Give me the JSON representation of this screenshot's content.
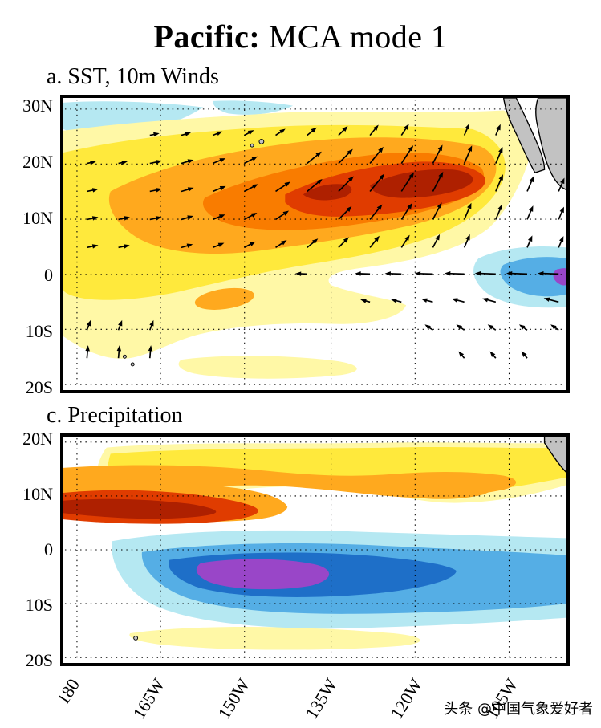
{
  "title": {
    "bold": "Pacific:",
    "rest": " MCA mode 1"
  },
  "panels": {
    "a": {
      "label": "a.  SST, 10m Winds",
      "y_ticks": [
        "30N",
        "20N",
        "10N",
        "0",
        "10S",
        "20S"
      ]
    },
    "c": {
      "label": "c.  Precipitation",
      "y_ticks": [
        "20N",
        "10N",
        "0",
        "10S",
        "20S"
      ]
    }
  },
  "x_axis": {
    "ticks": [
      "180",
      "165W",
      "150W",
      "135W",
      "120W",
      "105W"
    ]
  },
  "watermark": "头条 @中国气象爱好者",
  "palette": {
    "warm": [
      "#FFF8A6",
      "#FFE93C",
      "#FFA91E",
      "#F97C00",
      "#E03C00",
      "#AE2000"
    ],
    "cool": [
      "#B5E8F2",
      "#55AEE5",
      "#1E6FC8",
      "#9946C8"
    ],
    "land": "#C2C2C2"
  },
  "chart_data": [
    {
      "type": "heatmap",
      "panel": "a",
      "title": "SST, 10m Winds",
      "x_ticks": [
        "180",
        "165W",
        "150W",
        "135W",
        "120W",
        "105W"
      ],
      "y_ticks": [
        "30N",
        "20N",
        "10N",
        "0",
        "10S",
        "20S"
      ],
      "x_range": "180 to about 95W",
      "y_range": "about 22S to 32N",
      "grid": "dotted lat/lon graticule every 10 deg lat / 15 deg lon",
      "fields": {
        "sst_anomaly": {
          "positive_region": "broad warm anomaly (yellow to orange) spanning roughly 5S-30N from 180 eastward to the Mexican coast",
          "maximum": "elongated dark-red warm core near 13N-25N between about 150W and 115W",
          "secondary_positive": "weak warm tongue near 5S-10S west of 135W",
          "negative_region": "cool anomaly (cyan/blue) on the equator east of about 115W with a small purple extreme at the eastern boundary",
          "other_negative": "thin cool strip along 30N near the date line"
        },
        "winds_10m": "anomalous west-southwesterly vectors converging toward the warm core north of the equator (strongest over the dark-red maximum, turning northward near the Mexican coast); easterly anomalies along the equator east of about 150W; weak scattered vectors south of 5S including small northward arrows near 15S west of 165W"
      },
      "land": [
        "Baja California and mainland Mexico (gray, upper right)",
        "Hawaiian islands (small gray specks near 20N 155W)",
        "small island specks near 10-15S in the far west"
      ]
    },
    {
      "type": "heatmap",
      "panel": "c",
      "title": "Precipitation",
      "x_ticks": [
        "180",
        "165W",
        "150W",
        "135W",
        "120W",
        "105W"
      ],
      "y_ticks": [
        "20N",
        "10N",
        "0",
        "10S",
        "20S"
      ],
      "x_range": "180 to about 95W",
      "y_range": "about 21S to 21N",
      "grid": "dotted lat/lon graticule every 10 deg lat / 15 deg lon",
      "fields": {
        "precipitation_anomaly": {
          "positive_region": "wet band (yellow-orange) along 3N-15N across the whole basin, with an orange bump near 10N 120W",
          "maximum": "intense dark-red wet tongue near 5N from the western edge to about 150W",
          "negative_region": "dry band (cyan-blue) from the equator to about 12S across the basin",
          "minimum": "purple dry core near 3S-7S between about 165W and 145W",
          "secondary_positive": "weak wet strip near 15S-18S between 170W and 125W"
        }
      },
      "land": [
        "Central America corner (gray, upper right)",
        "small island speck near 12S in the far west"
      ]
    }
  ]
}
